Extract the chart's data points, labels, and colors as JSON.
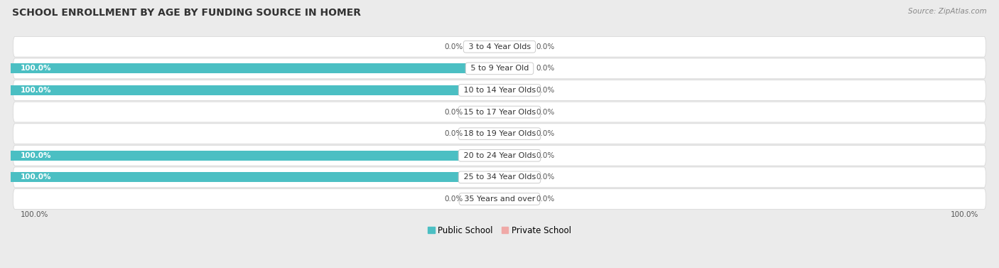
{
  "title": "SCHOOL ENROLLMENT BY AGE BY FUNDING SOURCE IN HOMER",
  "source": "Source: ZipAtlas.com",
  "categories": [
    "3 to 4 Year Olds",
    "5 to 9 Year Old",
    "10 to 14 Year Olds",
    "15 to 17 Year Olds",
    "18 to 19 Year Olds",
    "20 to 24 Year Olds",
    "25 to 34 Year Olds",
    "35 Years and over"
  ],
  "public_values": [
    0.0,
    100.0,
    100.0,
    0.0,
    0.0,
    100.0,
    100.0,
    0.0
  ],
  "private_values": [
    0.0,
    0.0,
    0.0,
    0.0,
    0.0,
    0.0,
    0.0,
    0.0
  ],
  "public_color": "#4BBFC3",
  "private_color": "#F0A9A7",
  "background_color": "#ebebeb",
  "row_bg_even": "#f7f7f7",
  "row_bg_odd": "#efefef",
  "title_fontsize": 10,
  "label_fontsize": 8,
  "bar_height": 0.45,
  "stub_size": 6.0,
  "xlim_left": -100,
  "xlim_right": 100
}
